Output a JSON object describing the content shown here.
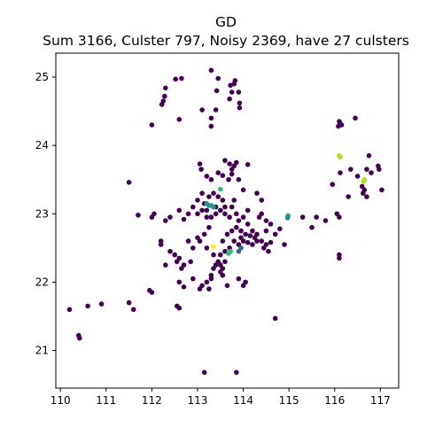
{
  "chart_data": {
    "type": "scatter",
    "title": "GD",
    "subtitle": "Sum 3166, Culster 797, Noisy 2369, have 27 culsters",
    "xlabel": "",
    "ylabel": "",
    "xlim": [
      109.9,
      117.4
    ],
    "ylim": [
      20.45,
      25.35
    ],
    "x_ticks": [
      "110",
      "111",
      "112",
      "113",
      "114",
      "115",
      "116",
      "117"
    ],
    "y_ticks": [
      "21",
      "22",
      "23",
      "24",
      "25"
    ],
    "grid": false,
    "colors": {
      "noise": "#440154",
      "cluster_teal": "#21918c",
      "cluster_blue": "#31688e",
      "cluster_green": "#35b779",
      "cluster_lime": "#b5de2b",
      "cluster_yellow": "#fde725"
    },
    "series": [
      {
        "color_key": "noise",
        "points": [
          [
            113.3,
            25.1
          ],
          [
            113.45,
            24.98
          ],
          [
            113.8,
            24.9
          ],
          [
            113.82,
            24.95
          ],
          [
            112.65,
            24.98
          ],
          [
            112.52,
            24.97
          ],
          [
            112.3,
            24.84
          ],
          [
            112.28,
            24.72
          ],
          [
            112.22,
            24.6
          ],
          [
            112.25,
            24.65
          ],
          [
            112.6,
            24.38
          ],
          [
            113.1,
            24.52
          ],
          [
            113.4,
            24.52
          ],
          [
            113.7,
            24.68
          ],
          [
            113.75,
            24.78
          ],
          [
            113.72,
            24.88
          ],
          [
            113.9,
            24.78
          ],
          [
            113.92,
            24.55
          ],
          [
            113.92,
            24.62
          ],
          [
            113.3,
            24.28
          ],
          [
            113.42,
            24.8
          ],
          [
            112.0,
            24.3
          ],
          [
            113.6,
            23.78
          ],
          [
            113.3,
            24.4
          ],
          [
            113.05,
            23.73
          ],
          [
            113.08,
            23.65
          ],
          [
            113.2,
            23.55
          ],
          [
            113.3,
            23.5
          ],
          [
            113.45,
            23.6
          ],
          [
            113.55,
            23.56
          ],
          [
            113.7,
            23.73
          ],
          [
            113.75,
            23.65
          ],
          [
            113.8,
            23.7
          ],
          [
            113.85,
            23.75
          ],
          [
            113.75,
            23.58
          ],
          [
            113.68,
            23.5
          ],
          [
            113.9,
            23.5
          ],
          [
            114.0,
            23.35
          ],
          [
            114.1,
            23.05
          ],
          [
            114.1,
            23.72
          ],
          [
            114.3,
            23.3
          ],
          [
            114.4,
            23.2
          ],
          [
            114.4,
            23.0
          ],
          [
            114.35,
            22.95
          ],
          [
            113.1,
            23.3
          ],
          [
            113.0,
            23.2
          ],
          [
            112.9,
            23.1
          ],
          [
            113.0,
            23.0
          ],
          [
            113.1,
            23.05
          ],
          [
            113.2,
            22.95
          ],
          [
            113.3,
            22.95
          ],
          [
            113.4,
            23.0
          ],
          [
            113.5,
            23.05
          ],
          [
            113.6,
            23.1
          ],
          [
            113.55,
            23.2
          ],
          [
            113.45,
            23.25
          ],
          [
            113.35,
            23.3
          ],
          [
            113.25,
            23.25
          ],
          [
            113.15,
            23.15
          ],
          [
            113.2,
            23.05
          ],
          [
            113.4,
            23.1
          ],
          [
            113.6,
            23.0
          ],
          [
            113.7,
            22.95
          ],
          [
            113.75,
            23.1
          ],
          [
            113.8,
            23.2
          ],
          [
            113.85,
            23.0
          ],
          [
            113.9,
            22.9
          ],
          [
            114.0,
            22.95
          ],
          [
            114.1,
            22.85
          ],
          [
            114.2,
            22.75
          ],
          [
            114.25,
            22.65
          ],
          [
            114.3,
            22.6
          ],
          [
            114.2,
            22.55
          ],
          [
            114.1,
            22.58
          ],
          [
            114.0,
            22.6
          ],
          [
            113.95,
            22.65
          ],
          [
            113.9,
            22.55
          ],
          [
            113.8,
            22.6
          ],
          [
            113.7,
            22.5
          ],
          [
            113.6,
            22.45
          ],
          [
            113.5,
            22.4
          ],
          [
            113.45,
            22.3
          ],
          [
            113.4,
            22.25
          ],
          [
            113.35,
            22.2
          ],
          [
            113.3,
            22.1
          ],
          [
            113.3,
            22.05
          ],
          [
            113.2,
            22.0
          ],
          [
            113.1,
            21.95
          ],
          [
            113.05,
            21.9
          ],
          [
            113.5,
            22.15
          ],
          [
            113.55,
            22.2
          ],
          [
            113.6,
            22.3
          ],
          [
            113.5,
            22.25
          ],
          [
            113.55,
            22.6
          ],
          [
            113.65,
            22.7
          ],
          [
            113.75,
            22.75
          ],
          [
            113.85,
            22.8
          ],
          [
            113.95,
            22.75
          ],
          [
            114.05,
            22.7
          ],
          [
            114.15,
            22.68
          ],
          [
            114.3,
            22.7
          ],
          [
            114.4,
            22.6
          ],
          [
            114.5,
            22.55
          ],
          [
            114.55,
            22.45
          ],
          [
            114.45,
            22.5
          ],
          [
            114.6,
            22.58
          ],
          [
            114.5,
            22.75
          ],
          [
            113.25,
            22.8
          ],
          [
            113.15,
            22.7
          ],
          [
            113.05,
            22.6
          ],
          [
            113.0,
            22.65
          ],
          [
            112.9,
            22.5
          ],
          [
            112.85,
            22.3
          ],
          [
            112.6,
            22.35
          ],
          [
            112.55,
            22.3
          ],
          [
            112.7,
            22.25
          ],
          [
            112.65,
            22.2
          ],
          [
            112.3,
            22.25
          ],
          [
            112.5,
            22.4
          ],
          [
            112.4,
            22.45
          ],
          [
            112.6,
            22.0
          ],
          [
            112.7,
            21.93
          ],
          [
            112.9,
            22.05
          ],
          [
            113.2,
            22.5
          ],
          [
            113.35,
            22.4
          ],
          [
            112.8,
            22.6
          ],
          [
            112.2,
            22.6
          ],
          [
            112.2,
            22.55
          ],
          [
            112.0,
            22.95
          ],
          [
            112.05,
            23.0
          ],
          [
            111.7,
            22.98
          ],
          [
            112.3,
            22.9
          ],
          [
            112.4,
            22.95
          ],
          [
            112.6,
            23.05
          ],
          [
            112.7,
            22.92
          ],
          [
            112.8,
            23.0
          ],
          [
            114.7,
            22.7
          ],
          [
            114.6,
            22.85
          ],
          [
            114.8,
            22.78
          ],
          [
            114.9,
            22.55
          ],
          [
            114.5,
            22.9
          ],
          [
            115.3,
            22.95
          ],
          [
            115.5,
            22.8
          ],
          [
            115.6,
            22.95
          ],
          [
            115.8,
            22.9
          ],
          [
            116.1,
            22.95
          ],
          [
            116.05,
            23.0
          ],
          [
            114.05,
            22.0
          ],
          [
            113.9,
            22.05
          ],
          [
            114.0,
            21.95
          ],
          [
            113.65,
            21.95
          ],
          [
            113.25,
            21.9
          ],
          [
            113.55,
            22.1
          ],
          [
            112.0,
            21.85
          ],
          [
            111.95,
            21.88
          ],
          [
            111.6,
            21.6
          ],
          [
            112.6,
            21.62
          ],
          [
            112.55,
            21.65
          ],
          [
            111.5,
            21.7
          ],
          [
            110.9,
            21.68
          ],
          [
            110.6,
            21.65
          ],
          [
            110.2,
            21.6
          ],
          [
            110.4,
            21.22
          ],
          [
            110.42,
            21.18
          ],
          [
            114.7,
            21.47
          ],
          [
            111.5,
            23.46
          ],
          [
            113.15,
            20.68
          ],
          [
            113.85,
            20.68
          ],
          [
            116.1,
            22.4
          ],
          [
            116.1,
            22.35
          ],
          [
            116.3,
            23.25
          ],
          [
            116.5,
            23.55
          ],
          [
            116.35,
            23.65
          ],
          [
            116.6,
            23.4
          ],
          [
            116.65,
            23.35
          ],
          [
            116.62,
            23.3
          ],
          [
            116.7,
            23.25
          ],
          [
            116.8,
            23.6
          ],
          [
            116.7,
            23.65
          ],
          [
            116.95,
            23.7
          ],
          [
            116.97,
            23.65
          ],
          [
            117.03,
            23.35
          ],
          [
            116.1,
            24.35
          ],
          [
            116.15,
            24.3
          ],
          [
            116.08,
            24.28
          ],
          [
            116.12,
            24.32
          ],
          [
            116.45,
            24.4
          ],
          [
            116.12,
            23.6
          ],
          [
            115.95,
            23.43
          ],
          [
            116.75,
            23.85
          ]
        ]
      },
      {
        "color_key": "cluster_teal",
        "points": [
          [
            113.2,
            23.15
          ],
          [
            113.25,
            23.12
          ],
          [
            113.3,
            23.12
          ],
          [
            113.35,
            23.1
          ],
          [
            114.98,
            22.97
          ],
          [
            114.97,
            22.94
          ]
        ]
      },
      {
        "color_key": "cluster_blue",
        "points": [
          [
            113.9,
            22.45
          ],
          [
            113.95,
            22.5
          ]
        ]
      },
      {
        "color_key": "cluster_green",
        "points": [
          [
            113.68,
            22.42
          ],
          [
            113.72,
            22.45
          ],
          [
            113.5,
            23.36
          ]
        ]
      },
      {
        "color_key": "cluster_lime",
        "points": [
          [
            116.1,
            23.85
          ],
          [
            116.12,
            23.83
          ],
          [
            116.65,
            23.5
          ],
          [
            116.63,
            23.47
          ]
        ]
      },
      {
        "color_key": "cluster_yellow",
        "points": [
          [
            113.35,
            22.52
          ]
        ]
      }
    ]
  }
}
